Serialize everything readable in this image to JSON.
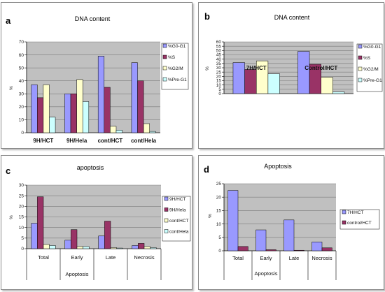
{
  "palette": {
    "plot_bg": "#c0c0c0",
    "grid": "#7a7a7a",
    "series_colors": [
      "#9999ff",
      "#993366",
      "#ffffcc",
      "#ccffff"
    ]
  },
  "chart_data": [
    {
      "id": "a",
      "panel_label": "a",
      "type": "bar",
      "title": "DNA content",
      "ylabel": "%",
      "ylim": [
        0,
        70
      ],
      "yticks": [
        0,
        10,
        20,
        30,
        40,
        50,
        60,
        70
      ],
      "grid": true,
      "legend_position": "right",
      "categories": [
        "9H/HCT",
        "9H/Hela",
        "cont/HCT",
        "cont/Hela"
      ],
      "series": [
        {
          "name": "%G0-G1",
          "values": [
            37,
            30,
            59,
            54
          ]
        },
        {
          "name": "%S",
          "values": [
            27,
            30,
            35,
            40
          ]
        },
        {
          "name": "%G2/M",
          "values": [
            37,
            41,
            5,
            7
          ]
        },
        {
          "name": "%Pre-G1",
          "values": [
            12,
            24,
            2,
            1
          ]
        }
      ]
    },
    {
      "id": "b",
      "panel_label": "b",
      "type": "bar",
      "title": "DNA content",
      "ylabel": "%",
      "ylim": [
        0,
        60
      ],
      "yticks": [
        0,
        5,
        10,
        15,
        20,
        25,
        30,
        35,
        40,
        45,
        50,
        55,
        60
      ],
      "grid": true,
      "legend_position": "right",
      "categories": [
        "7H/HCT",
        "Control/HCT"
      ],
      "series": [
        {
          "name": "%G0-G1",
          "values": [
            36,
            49
          ]
        },
        {
          "name": "%S",
          "values": [
            28,
            34
          ]
        },
        {
          "name": "%G2/M",
          "values": [
            38,
            19
          ]
        },
        {
          "name": "%Pre-G1",
          "values": [
            23,
            2
          ]
        }
      ]
    },
    {
      "id": "c",
      "panel_label": "c",
      "type": "bar",
      "title": "apoptosis",
      "ylabel": "%",
      "ylim": [
        0,
        30
      ],
      "yticks": [
        0,
        5,
        10,
        15,
        20,
        25,
        30
      ],
      "grid": true,
      "legend_position": "right",
      "categories": [
        "Total",
        "Early",
        "Late",
        "Necrosis"
      ],
      "group_label": "Apoptosis",
      "series": [
        {
          "name": "9H/HCT",
          "values": [
            12,
            4,
            6,
            1.5
          ]
        },
        {
          "name": "9H/Hela",
          "values": [
            24.5,
            9,
            13,
            2.5
          ]
        },
        {
          "name": "cont/HCT",
          "values": [
            2,
            1,
            0.5,
            1
          ]
        },
        {
          "name": "cont/Hela",
          "values": [
            1.5,
            1,
            0.3,
            0.5
          ]
        }
      ]
    },
    {
      "id": "d",
      "panel_label": "d",
      "type": "bar",
      "title": "Apoptosis",
      "ylabel": "%",
      "ylim": [
        0,
        25
      ],
      "yticks": [
        0,
        5,
        10,
        15,
        20,
        25
      ],
      "grid": true,
      "legend_position": "right",
      "categories": [
        "Total",
        "Early",
        "Late",
        "Necrosis"
      ],
      "group_label": "Apoptosis",
      "series": [
        {
          "name": "7H/HCT",
          "values": [
            22.5,
            7.8,
            11.5,
            3.3
          ]
        },
        {
          "name": "control/HCT",
          "values": [
            1.6,
            0.4,
            0.2,
            1.1
          ]
        }
      ]
    }
  ]
}
